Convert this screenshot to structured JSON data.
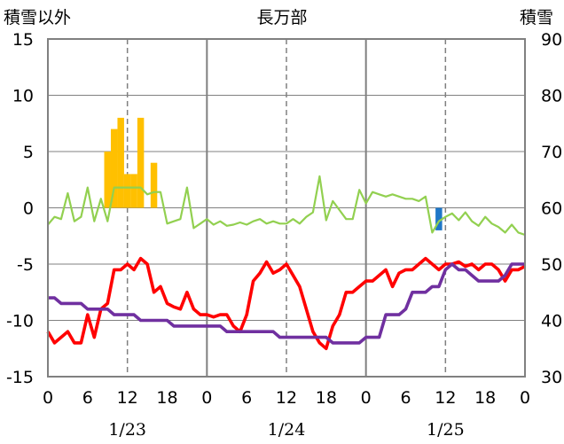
{
  "chart_data": {
    "type": "bar+line",
    "title": "長万部",
    "left_axis_label": "積雪以外",
    "right_axis_label": "積雪",
    "left_ylim": [
      -15,
      15
    ],
    "left_yticks": [
      -15,
      -10,
      -5,
      0,
      5,
      10,
      15
    ],
    "right_ylim": [
      30,
      90
    ],
    "right_yticks": [
      30,
      40,
      50,
      60,
      70,
      80,
      90
    ],
    "x_range_hours": [
      0,
      72
    ],
    "x_tick_labels": [
      "0",
      "6",
      "12",
      "18",
      "0",
      "6",
      "12",
      "18",
      "0",
      "6",
      "12",
      "18",
      "0"
    ],
    "date_labels": [
      "1/23",
      "1/24",
      "1/25"
    ],
    "colors": {
      "bars_positive": "#ffc000",
      "bars_negative": "#1f77c8",
      "red_line": "#ff0000",
      "purple_line": "#7030a0",
      "green_line": "#92d050",
      "grid": "#808080"
    },
    "bars": [
      0,
      0,
      0,
      0,
      0,
      0,
      0,
      0,
      0,
      5,
      7,
      8,
      3,
      3,
      8,
      0,
      4,
      0,
      0,
      0,
      0,
      0,
      0,
      0,
      0,
      0,
      0,
      0,
      0,
      0,
      0,
      0,
      0,
      0,
      0,
      0,
      0,
      0,
      0,
      0,
      0,
      0,
      0,
      0,
      0,
      0,
      0,
      0,
      0,
      0,
      0,
      0,
      0,
      0,
      0,
      0,
      0,
      0,
      0,
      -2,
      0,
      0,
      0,
      0,
      0,
      0,
      0,
      0,
      0,
      0,
      0,
      0,
      0
    ],
    "series": [
      {
        "color_key": "red_line",
        "axis": "left",
        "values": [
          -11,
          -12,
          -11.5,
          -11,
          -12,
          -12,
          -9.5,
          -11.5,
          -9,
          -8.5,
          -5.5,
          -5.5,
          -5,
          -5.5,
          -4.5,
          -5,
          -7.5,
          -7,
          -8.5,
          -8.8,
          -9,
          -7.5,
          -9,
          -9.5,
          -9.5,
          -9.7,
          -9.5,
          -9.5,
          -10.5,
          -11,
          -9.5,
          -6.5,
          -5.8,
          -4.8,
          -5.8,
          -5.5,
          -5,
          -6,
          -7,
          -9,
          -11,
          -12,
          -12.5,
          -10.5,
          -9.5,
          -7.5,
          -7.5,
          -7,
          -6.5,
          -6.5,
          -6,
          -5.5,
          -7,
          -5.8,
          -5.5,
          -5.5,
          -5,
          -4.5,
          -5,
          -5.5,
          -5,
          -5,
          -4.8,
          -5.2,
          -5,
          -5.5,
          -5,
          -5,
          -5.5,
          -6.5,
          -5.5,
          -5.5,
          -5.2
        ]
      },
      {
        "color_key": "purple_line",
        "axis": "right",
        "values": [
          44,
          44,
          43,
          43,
          43,
          43,
          42,
          42,
          42,
          42,
          41,
          41,
          41,
          41,
          40,
          40,
          40,
          40,
          40,
          39,
          39,
          39,
          39,
          39,
          39,
          39,
          39,
          38,
          38,
          38,
          38,
          38,
          38,
          38,
          38,
          37,
          37,
          37,
          37,
          37,
          37,
          37,
          37,
          36,
          36,
          36,
          36,
          36,
          37,
          37,
          37,
          41,
          41,
          41,
          42,
          45,
          45,
          45,
          46,
          46,
          49,
          50,
          49,
          49,
          48,
          47,
          47,
          47,
          47,
          48,
          50,
          50,
          50
        ]
      },
      {
        "color_key": "green_line",
        "axis": "left",
        "values": [
          -1.5,
          -0.8,
          -1,
          1.3,
          -1.2,
          -0.8,
          1.8,
          -1.2,
          0.8,
          -1.2,
          1.8,
          1.8,
          1.8,
          1.8,
          1.8,
          1.2,
          1.4,
          1.4,
          -1.4,
          -1.2,
          -1,
          1.8,
          -1.8,
          -1.4,
          -1,
          -1.5,
          -1.2,
          -1.6,
          -1.5,
          -1.3,
          -1.5,
          -1.2,
          -1,
          -1.4,
          -1.2,
          -1.4,
          -1.4,
          -1,
          -1.4,
          -0.8,
          -0.4,
          2.8,
          -1.1,
          0.6,
          -0.2,
          -1,
          -1,
          1.6,
          0.4,
          1.4,
          1.2,
          1.0,
          1.2,
          1.0,
          0.8,
          0.8,
          0.6,
          1,
          -2.2,
          -1.2,
          -0.8,
          -0.5,
          -1.1,
          -0.4,
          -1.2,
          -1.6,
          -0.8,
          -1.4,
          -1.7,
          -2.2,
          -1.5,
          -2.2,
          -2.4
        ]
      }
    ]
  }
}
